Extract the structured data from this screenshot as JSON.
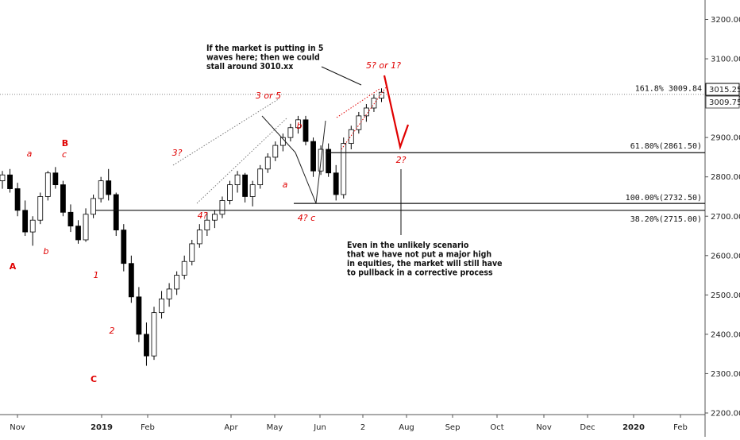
{
  "chart_data": {
    "type": "candlestick",
    "symbol_hint": "",
    "y_axis": {
      "ticks": [
        2200,
        2300,
        2400,
        2500,
        2600,
        2700,
        2800,
        2900,
        3000,
        3100,
        3200
      ],
      "tick_labels": [
        "2200.00",
        "2300.00",
        "2400.00",
        "2500.00",
        "2600.00",
        "2700.00",
        "2800.00",
        "2900.00",
        "3000.00",
        "3100.00",
        "3200.00"
      ],
      "range": [
        2185,
        3245
      ]
    },
    "x_axis": {
      "tick_labels": [
        "Nov",
        "2019",
        "Feb",
        "Apr",
        "May",
        "Jun",
        "2",
        "Aug",
        "Sep",
        "Oct",
        "Nov",
        "Dec",
        "2020",
        "Feb"
      ],
      "bold_labels": [
        "2019",
        "2020"
      ],
      "range_weeks": [
        0,
        82
      ]
    },
    "price_tags": [
      {
        "label": "3015.25",
        "value": 3015.25,
        "style": "filled"
      },
      {
        "label": "3009.75",
        "value": 3009.75,
        "style": "outlined"
      }
    ],
    "levels": [
      {
        "label": "161.8% 3009.84",
        "value": 3009.84,
        "style": "dotted"
      },
      {
        "label": "61.80%(2861.50)",
        "value": 2861.5,
        "style": "solid"
      },
      {
        "label": "100.00%(2732.50)",
        "value": 2732.5,
        "style": "solid"
      },
      {
        "label": "38.20%(2715.00)",
        "value": 2715.0,
        "style": "solid"
      }
    ],
    "wave_labels": [
      {
        "text": "A",
        "color": "#e00000",
        "bold": true
      },
      {
        "text": "B",
        "color": "#e00000",
        "bold": true
      },
      {
        "text": "C",
        "color": "#e00000",
        "bold": true
      },
      {
        "text": "a",
        "color": "#e00000",
        "bold": false
      },
      {
        "text": "b",
        "color": "#e00000",
        "bold": false
      },
      {
        "text": "c",
        "color": "#e00000",
        "bold": false
      },
      {
        "text": "1",
        "color": "#e00000",
        "bold": false
      },
      {
        "text": "2",
        "color": "#e00000",
        "bold": false
      },
      {
        "text": "3?",
        "color": "#e00000",
        "bold": false
      },
      {
        "text": "4?",
        "color": "#e00000",
        "bold": false
      },
      {
        "text": "3 or 5",
        "color": "#e00000",
        "bold": false
      },
      {
        "text": "a",
        "color": "#e00000",
        "bold": false
      },
      {
        "text": "b",
        "color": "#e00000",
        "bold": false
      },
      {
        "text": "4? c",
        "color": "#e00000",
        "bold": false
      },
      {
        "text": "5? or 1?",
        "color": "#e00000",
        "bold": false
      },
      {
        "text": "2?",
        "color": "#e00000",
        "bold": false
      }
    ],
    "annotations": [
      {
        "lines": [
          "If the market is putting in 5",
          "waves here; then we could",
          "stall around 3010.xx"
        ]
      },
      {
        "lines": [
          "Even in the unlikely scenario",
          "that we have not put a major high",
          "in equities, the market will still have",
          "to pullback in a corrective process"
        ]
      }
    ],
    "projection": {
      "points": [
        [
          3009.8,
          16
        ],
        [
          2870,
          18
        ],
        [
          2925,
          19
        ]
      ],
      "color": "#e00000"
    },
    "candles": [
      [
        2790,
        2815,
        2770,
        2805
      ],
      [
        2805,
        2820,
        2760,
        2770
      ],
      [
        2770,
        2785,
        2700,
        2715
      ],
      [
        2715,
        2740,
        2650,
        2660
      ],
      [
        2660,
        2700,
        2625,
        2690
      ],
      [
        2690,
        2760,
        2680,
        2750
      ],
      [
        2750,
        2815,
        2740,
        2810
      ],
      [
        2810,
        2825,
        2770,
        2780
      ],
      [
        2780,
        2790,
        2700,
        2710
      ],
      [
        2710,
        2730,
        2660,
        2675
      ],
      [
        2675,
        2690,
        2630,
        2640
      ],
      [
        2640,
        2720,
        2635,
        2705
      ],
      [
        2705,
        2755,
        2695,
        2745
      ],
      [
        2745,
        2800,
        2735,
        2790
      ],
      [
        2790,
        2820,
        2740,
        2755
      ],
      [
        2755,
        2760,
        2650,
        2665
      ],
      [
        2665,
        2680,
        2560,
        2580
      ],
      [
        2580,
        2600,
        2480,
        2495
      ],
      [
        2495,
        2520,
        2380,
        2400
      ],
      [
        2400,
        2430,
        2320,
        2345
      ],
      [
        2345,
        2470,
        2335,
        2455
      ],
      [
        2455,
        2510,
        2440,
        2490
      ],
      [
        2490,
        2530,
        2470,
        2515
      ],
      [
        2515,
        2560,
        2500,
        2550
      ],
      [
        2550,
        2600,
        2540,
        2585
      ],
      [
        2585,
        2640,
        2575,
        2630
      ],
      [
        2630,
        2680,
        2620,
        2665
      ],
      [
        2665,
        2710,
        2650,
        2690
      ],
      [
        2690,
        2715,
        2670,
        2705
      ],
      [
        2705,
        2750,
        2695,
        2740
      ],
      [
        2740,
        2790,
        2730,
        2780
      ],
      [
        2780,
        2815,
        2760,
        2805
      ],
      [
        2805,
        2810,
        2735,
        2750
      ],
      [
        2750,
        2790,
        2725,
        2780
      ],
      [
        2780,
        2830,
        2770,
        2820
      ],
      [
        2820,
        2860,
        2810,
        2850
      ],
      [
        2850,
        2890,
        2840,
        2880
      ],
      [
        2880,
        2910,
        2865,
        2900
      ],
      [
        2900,
        2935,
        2890,
        2925
      ],
      [
        2925,
        2955,
        2910,
        2945
      ],
      [
        2945,
        2955,
        2880,
        2890
      ],
      [
        2890,
        2900,
        2800,
        2815
      ],
      [
        2815,
        2880,
        2805,
        2870
      ],
      [
        2870,
        2885,
        2800,
        2810
      ],
      [
        2810,
        2830,
        2740,
        2755
      ],
      [
        2755,
        2900,
        2745,
        2885
      ],
      [
        2885,
        2930,
        2870,
        2920
      ],
      [
        2920,
        2965,
        2910,
        2955
      ],
      [
        2955,
        2985,
        2940,
        2975
      ],
      [
        2975,
        3010,
        2965,
        3000
      ],
      [
        3000,
        3025,
        2990,
        3015
      ]
    ]
  }
}
